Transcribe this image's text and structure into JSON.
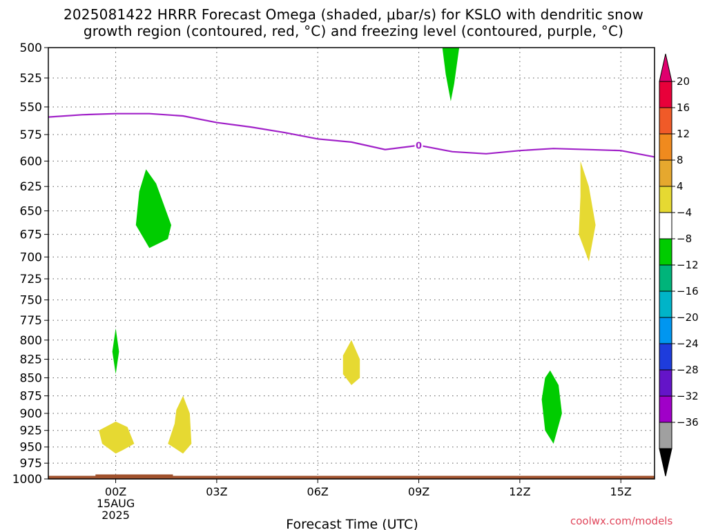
{
  "title_line1": "2025081422 HRRR Forecast Omega (shaded, μbar/s) for KSLO with dendritic snow",
  "title_line2": "growth region (contoured, red, °C) and freezing level (contoured, purple, °C)",
  "credit": "coolwx.com/models",
  "chart_data": {
    "type": "contour",
    "xlabel": "Forecast Time (UTC)",
    "x_ticks": [
      {
        "hour": 0,
        "lines": [
          "00Z",
          "15AUG",
          "2025"
        ]
      },
      {
        "hour": 3,
        "lines": [
          "03Z"
        ]
      },
      {
        "hour": 6,
        "lines": [
          "06Z"
        ]
      },
      {
        "hour": 9,
        "lines": [
          "09Z"
        ]
      },
      {
        "hour": 12,
        "lines": [
          "12Z"
        ]
      },
      {
        "hour": 15,
        "lines": [
          "15Z"
        ]
      }
    ],
    "xlim_hours": [
      -2,
      16
    ],
    "y_levels_hPa": [
      500,
      525,
      550,
      575,
      600,
      625,
      650,
      675,
      700,
      725,
      750,
      775,
      800,
      825,
      850,
      875,
      900,
      925,
      950,
      975,
      1000
    ],
    "ylim_hPa": [
      500,
      1000
    ],
    "y_scale": "log-pressure",
    "grid": true,
    "freezing_level": {
      "label": "0",
      "color": "#a020c8",
      "points": [
        [
          -2,
          559
        ],
        [
          -1,
          557
        ],
        [
          0,
          556
        ],
        [
          1,
          556
        ],
        [
          2,
          558
        ],
        [
          3,
          564
        ],
        [
          4,
          568
        ],
        [
          5,
          573
        ],
        [
          6,
          579
        ],
        [
          7,
          582
        ],
        [
          8,
          589
        ],
        [
          9,
          585
        ],
        [
          10,
          591
        ],
        [
          11,
          593
        ],
        [
          12,
          590
        ],
        [
          13,
          588
        ],
        [
          14,
          589
        ],
        [
          15,
          590
        ],
        [
          16,
          596
        ]
      ]
    },
    "omega_regions": [
      {
        "color": "#00cc00",
        "points": [
          [
            9.7,
            500
          ],
          [
            10.2,
            500
          ],
          [
            10.05,
            530
          ],
          [
            9.95,
            545
          ],
          [
            9.8,
            522
          ]
        ]
      },
      {
        "color": "#00cc00",
        "points": [
          [
            0.9,
            608
          ],
          [
            1.2,
            622
          ],
          [
            1.65,
            665
          ],
          [
            1.55,
            680
          ],
          [
            1.0,
            690
          ],
          [
            0.6,
            665
          ],
          [
            0.7,
            630
          ]
        ]
      },
      {
        "color": "#00cc00",
        "points": [
          [
            0.0,
            785
          ],
          [
            0.1,
            815
          ],
          [
            0.0,
            845
          ],
          [
            -0.1,
            815
          ]
        ]
      },
      {
        "color": "#00cc00",
        "points": [
          [
            12.9,
            840
          ],
          [
            13.15,
            860
          ],
          [
            13.25,
            900
          ],
          [
            13.0,
            945
          ],
          [
            12.75,
            925
          ],
          [
            12.65,
            880
          ],
          [
            12.75,
            850
          ]
        ]
      },
      {
        "color": "#e6d932",
        "points": [
          [
            13.8,
            600
          ],
          [
            14.05,
            625
          ],
          [
            14.25,
            665
          ],
          [
            14.05,
            705
          ],
          [
            13.75,
            675
          ],
          [
            13.8,
            635
          ]
        ]
      },
      {
        "color": "#e6d932",
        "points": [
          [
            7.0,
            800
          ],
          [
            7.25,
            825
          ],
          [
            7.25,
            850
          ],
          [
            7.0,
            860
          ],
          [
            6.75,
            845
          ],
          [
            6.75,
            820
          ]
        ]
      },
      {
        "color": "#e6d932",
        "points": [
          [
            2.0,
            875
          ],
          [
            2.2,
            900
          ],
          [
            2.25,
            945
          ],
          [
            2.0,
            960
          ],
          [
            1.55,
            945
          ],
          [
            1.75,
            915
          ],
          [
            1.8,
            895
          ]
        ]
      },
      {
        "color": "#e6d932",
        "points": [
          [
            0.0,
            912
          ],
          [
            0.35,
            920
          ],
          [
            0.55,
            945
          ],
          [
            0.2,
            955
          ],
          [
            0.0,
            960
          ],
          [
            -0.4,
            945
          ],
          [
            -0.5,
            925
          ]
        ]
      }
    ],
    "terrain": {
      "color": "#a0522d",
      "points": [
        [
          -2,
          995
        ],
        [
          16,
          995
        ]
      ]
    },
    "colorbar": {
      "labels": [
        "20",
        "16",
        "12",
        "8",
        "4",
        "−4",
        "−8",
        "−12",
        "−16",
        "−20",
        "−24",
        "−28",
        "−32",
        "−36"
      ],
      "colors": [
        "#e8003a",
        "#f05a28",
        "#f08a1e",
        "#e6a82e",
        "#e6d932",
        "#ffffff",
        "#00cc00",
        "#00b47a",
        "#00b4c8",
        "#0096f0",
        "#1e3cdc",
        "#6414c8",
        "#a000c8",
        "#a0a0a0"
      ],
      "top_arrow_color": "#e0006e",
      "bottom_arrow_color": "#000000"
    }
  }
}
